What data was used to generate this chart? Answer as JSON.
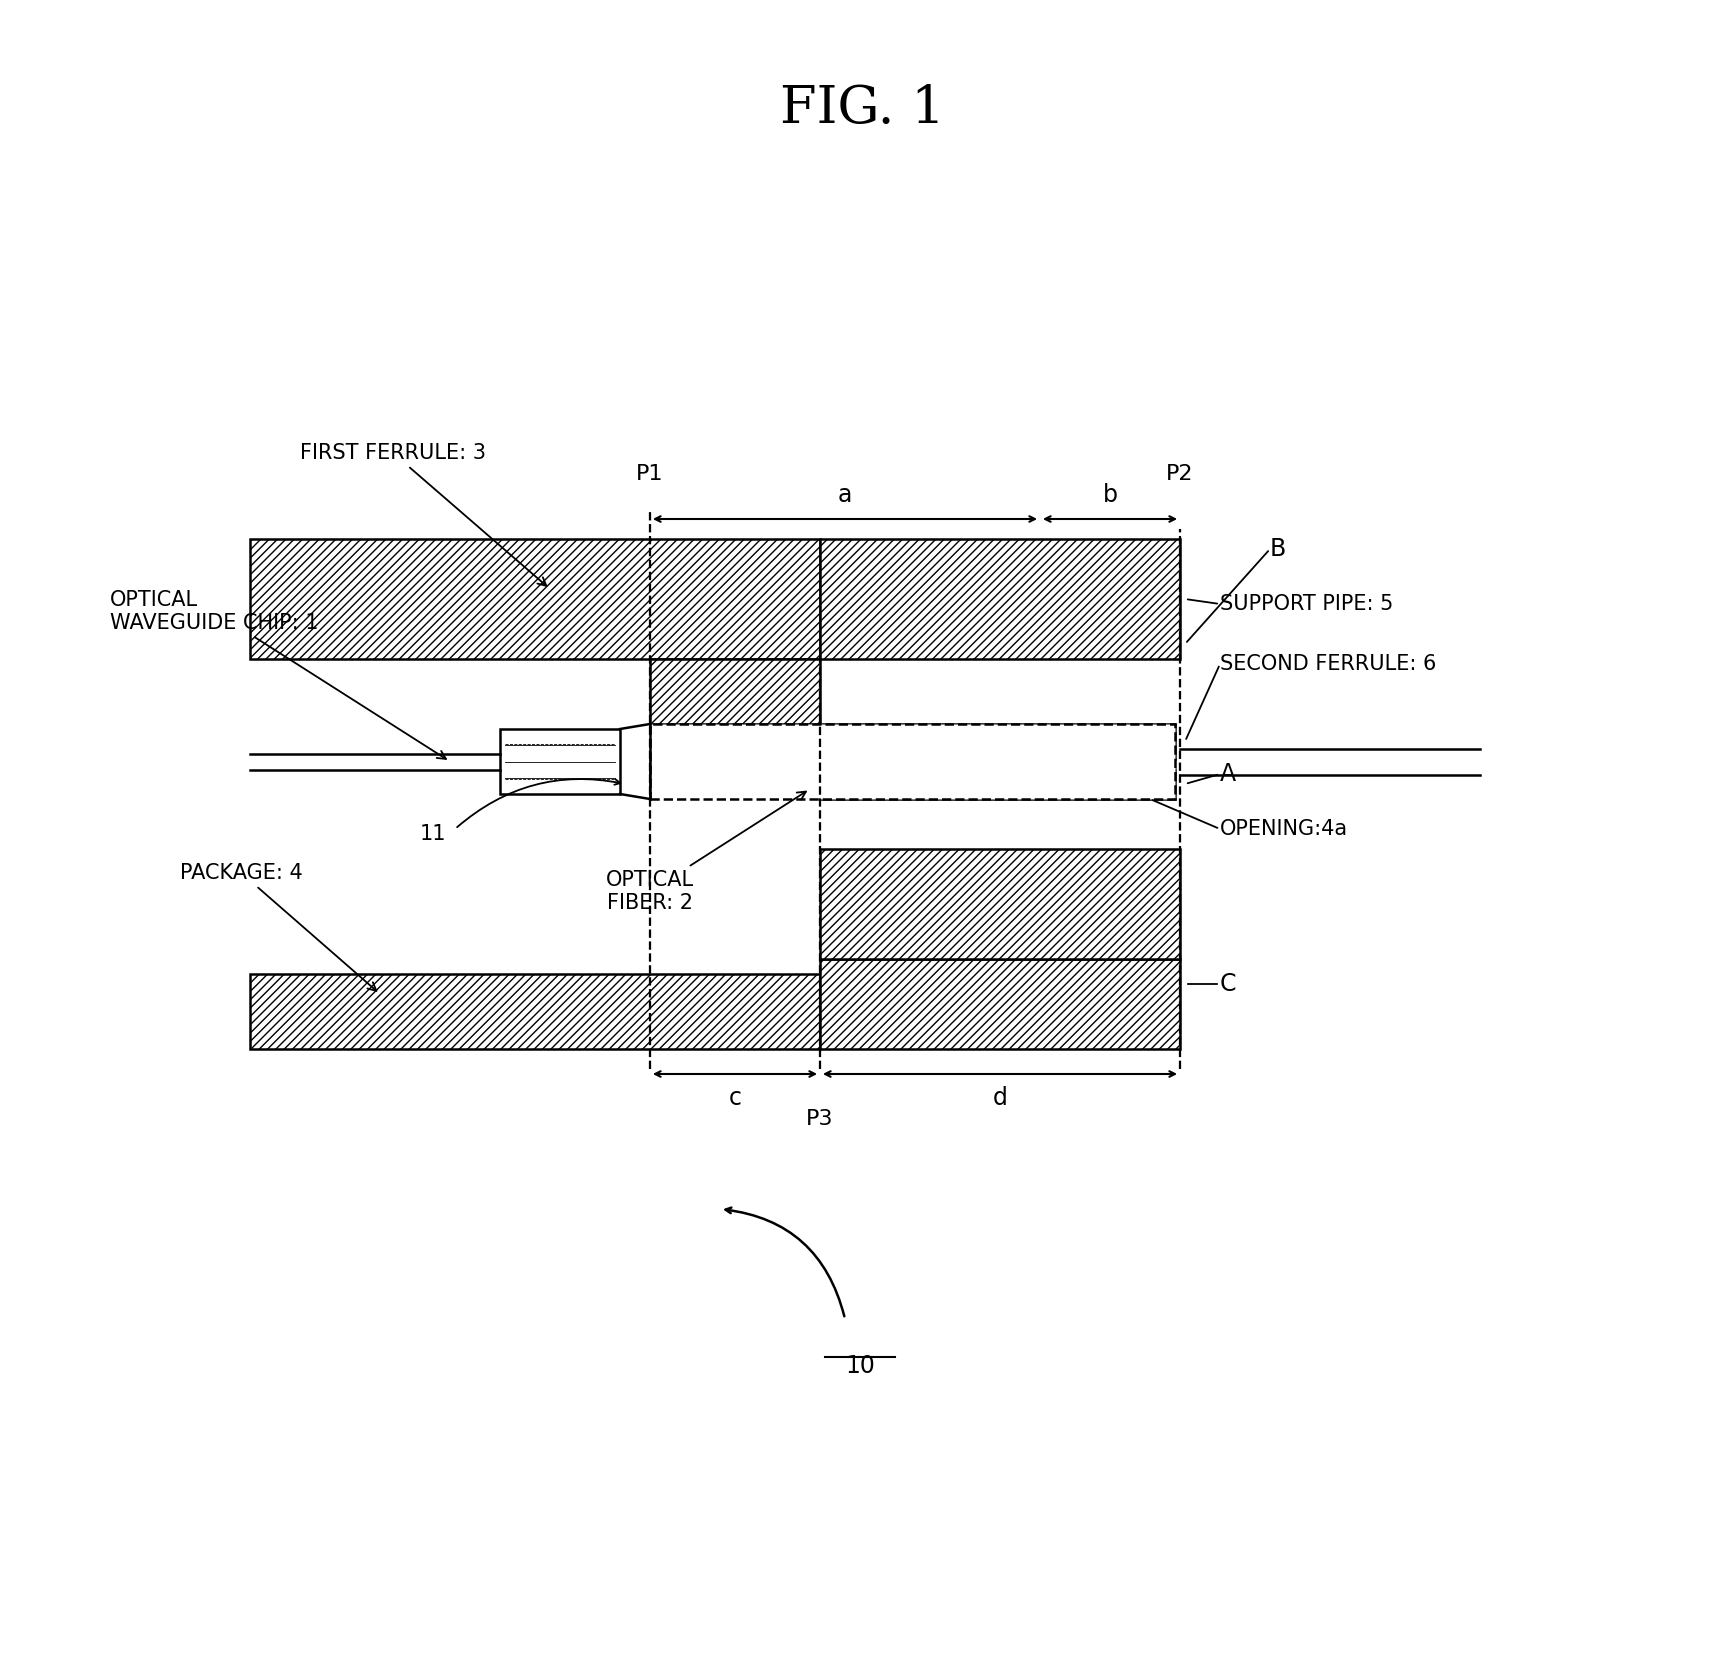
{
  "title": "FIG. 1",
  "title_fontsize": 38,
  "label_fontsize": 15,
  "background_color": "#ffffff",
  "fig_label": "10",
  "components": {
    "first_ferrule_label": "FIRST FERRULE: 3",
    "optical_waveguide_label": "OPTICAL\nWAVEGUIDE CHIP: 1",
    "optical_fiber_label": "OPTICAL\nFIBER: 2",
    "package_label": "PACKAGE: 4",
    "support_pipe_label": "SUPPORT PIPE: 5",
    "second_ferrule_label": "SECOND FERRULE: 6",
    "opening_label": "OPENING:4a",
    "point_11_label": "11",
    "point_A_label": "A",
    "point_B_label": "B",
    "point_C_label": "C",
    "dim_a_label": "a",
    "dim_b_label": "b",
    "dim_c_label": "c",
    "dim_d_label": "d",
    "P1_label": "P1",
    "P2_label": "P2",
    "P3_label": "P3"
  }
}
